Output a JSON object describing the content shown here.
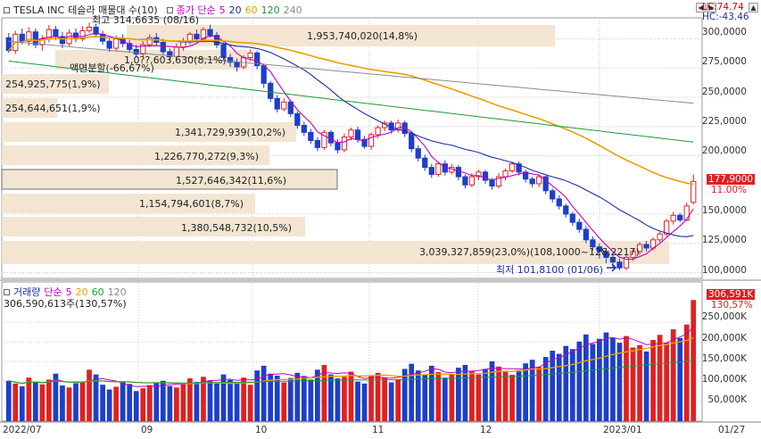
{
  "toolbar": {
    "stock_name": "TESLA INC",
    "indicator": "테슬라 매물대 수(10)",
    "ma_label": "종가 단순",
    "ma_periods": [
      "5",
      "20",
      "60",
      "120",
      "240"
    ],
    "ma_colors": [
      "#c000c0",
      "#1c2fa8",
      "#e8a100",
      "#1a9a3c",
      "#8a8a8a"
    ]
  },
  "lc_hc": {
    "lc": "LC:74.74",
    "hc": "HC:-43.46"
  },
  "price_axis": [
    "300,0000",
    "275,0000",
    "250,0000",
    "225,0000",
    "200,0000",
    "177,9000",
    "150,0000",
    "125,0000",
    "100,0000"
  ],
  "current_price": {
    "value": "177,9000",
    "pct": "11.00%"
  },
  "volume_panel": {
    "label": "거래량",
    "ma_label": "단순",
    "ma_periods": [
      "5",
      "20",
      "60",
      "120"
    ],
    "ma_colors": [
      "#c000c0",
      "#e8a100",
      "#1a9a3c",
      "#8a8a8a"
    ],
    "current_volume": "306,590,613주(130,57%)",
    "current_tag": "306,591K",
    "current_pct": "130,57%"
  },
  "volume_axis": [
    "250,000K",
    "200,000K",
    "150,000K",
    "100,000K",
    "50,000K"
  ],
  "date_axis": [
    "2022/07",
    "09",
    "10",
    "11",
    "12",
    "2023/01",
    "01/27"
  ],
  "annotations": {
    "high": "최고 314,6635 (08/16)",
    "low": "최저 101,8100 (01/06)",
    "split": "액면분할(-66,67%)"
  },
  "volume_profile": [
    {
      "label": "1,953,740,020(14,8%)"
    },
    {
      "label": "1,0??,603,630(8,1%)"
    },
    {
      "label": "254,925,775(1,9%)"
    },
    {
      "label": "254,644,651(1,9%)"
    },
    {
      "label": "1,341,729,939(10,2%)"
    },
    {
      "label": "1,226,770,272(9,3%)"
    },
    {
      "label": "1,527,646,342(11,6%)"
    },
    {
      "label": "1,154,794,601(8,7%)"
    },
    {
      "label": "1,380,548,732(10,5%)"
    },
    {
      "label": "3,039,327,859(23,0%)(108,1000~128,2217)"
    }
  ],
  "chart_data": {
    "type": "candlestick",
    "yrange": [
      95,
      318
    ],
    "candles": [
      [
        301,
        290,
        305,
        288
      ],
      [
        290,
        304,
        307,
        287
      ],
      [
        304,
        298,
        309,
        295
      ],
      [
        298,
        306,
        310,
        294
      ],
      [
        306,
        295,
        309,
        292
      ],
      [
        295,
        300,
        303,
        290
      ],
      [
        300,
        308,
        312,
        297
      ],
      [
        308,
        302,
        311,
        299
      ],
      [
        302,
        296,
        306,
        292
      ],
      [
        296,
        305,
        308,
        294
      ],
      [
        305,
        300,
        309,
        297
      ],
      [
        300,
        307,
        311,
        298
      ],
      [
        307,
        310,
        314,
        305
      ],
      [
        310,
        304,
        313,
        302
      ],
      [
        304,
        298,
        307,
        295
      ],
      [
        298,
        292,
        301,
        289
      ],
      [
        292,
        300,
        303,
        290
      ],
      [
        300,
        296,
        304,
        293
      ],
      [
        296,
        291,
        299,
        288
      ],
      [
        291,
        287,
        295,
        284
      ],
      [
        287,
        295,
        298,
        285
      ],
      [
        295,
        301,
        304,
        293
      ],
      [
        301,
        297,
        305,
        294
      ],
      [
        297,
        289,
        300,
        286
      ],
      [
        289,
        285,
        292,
        281
      ],
      [
        285,
        293,
        296,
        283
      ],
      [
        293,
        298,
        301,
        290
      ],
      [
        298,
        304,
        306,
        295
      ],
      [
        304,
        300,
        308,
        298
      ],
      [
        300,
        308,
        310,
        297
      ],
      [
        308,
        303,
        312,
        301
      ],
      [
        303,
        295,
        306,
        292
      ],
      [
        295,
        284,
        297,
        281
      ],
      [
        284,
        280,
        287,
        276
      ],
      [
        280,
        276,
        283,
        272
      ],
      [
        276,
        284,
        286,
        274
      ],
      [
        284,
        288,
        291,
        281
      ],
      [
        288,
        277,
        290,
        274
      ],
      [
        277,
        262,
        279,
        258
      ],
      [
        262,
        249,
        264,
        246
      ],
      [
        249,
        240,
        252,
        237
      ],
      [
        240,
        246,
        249,
        238
      ],
      [
        246,
        236,
        248,
        233
      ],
      [
        236,
        226,
        238,
        223
      ],
      [
        226,
        220,
        229,
        217
      ],
      [
        220,
        213,
        223,
        210
      ],
      [
        213,
        207,
        216,
        204
      ],
      [
        207,
        220,
        222,
        205
      ],
      [
        220,
        211,
        222,
        208
      ],
      [
        211,
        205,
        214,
        202
      ],
      [
        205,
        216,
        219,
        203
      ],
      [
        216,
        222,
        224,
        213
      ],
      [
        222,
        214,
        225,
        211
      ],
      [
        214,
        208,
        217,
        206
      ],
      [
        208,
        218,
        220,
        205
      ],
      [
        218,
        224,
        226,
        215
      ],
      [
        224,
        228,
        230,
        221
      ],
      [
        228,
        222,
        230,
        219
      ],
      [
        222,
        228,
        231,
        220
      ],
      [
        228,
        219,
        230,
        216
      ],
      [
        219,
        206,
        221,
        203
      ],
      [
        206,
        198,
        209,
        195
      ],
      [
        198,
        190,
        201,
        187
      ],
      [
        190,
        184,
        193,
        181
      ],
      [
        184,
        193,
        195,
        182
      ],
      [
        193,
        186,
        196,
        183
      ],
      [
        186,
        190,
        193,
        184
      ],
      [
        190,
        182,
        192,
        179
      ],
      [
        182,
        175,
        184,
        172
      ],
      [
        175,
        182,
        185,
        173
      ],
      [
        182,
        186,
        188,
        179
      ],
      [
        186,
        179,
        188,
        176
      ],
      [
        179,
        174,
        181,
        171
      ],
      [
        174,
        182,
        185,
        172
      ],
      [
        182,
        187,
        189,
        179
      ],
      [
        187,
        193,
        195,
        185
      ],
      [
        193,
        186,
        195,
        183
      ],
      [
        186,
        180,
        188,
        177
      ],
      [
        180,
        176,
        182,
        173
      ],
      [
        176,
        182,
        184,
        173
      ],
      [
        182,
        170,
        183,
        167
      ],
      [
        170,
        163,
        172,
        160
      ],
      [
        163,
        157,
        166,
        154
      ],
      [
        157,
        150,
        159,
        147
      ],
      [
        150,
        143,
        152,
        140
      ],
      [
        143,
        137,
        146,
        134
      ],
      [
        137,
        128,
        140,
        125
      ],
      [
        128,
        122,
        131,
        119
      ],
      [
        122,
        118,
        125,
        112
      ],
      [
        118,
        113,
        121,
        108
      ],
      [
        113,
        109,
        117,
        104
      ],
      [
        109,
        104,
        112,
        102
      ],
      [
        104,
        113,
        116,
        102
      ],
      [
        113,
        118,
        120,
        110
      ],
      [
        118,
        124,
        126,
        115
      ],
      [
        124,
        121,
        127,
        118
      ],
      [
        121,
        128,
        130,
        119
      ],
      [
        128,
        133,
        135,
        126
      ],
      [
        133,
        144,
        146,
        131
      ],
      [
        144,
        149,
        152,
        141
      ],
      [
        149,
        145,
        151,
        143
      ],
      [
        145,
        157,
        160,
        144
      ],
      [
        160,
        178,
        184,
        158
      ]
    ],
    "volumes": [
      102,
      95,
      88,
      110,
      98,
      93,
      105,
      120,
      90,
      85,
      96,
      100,
      130,
      118,
      92,
      80,
      87,
      99,
      94,
      76,
      83,
      91,
      97,
      102,
      89,
      85,
      93,
      108,
      99,
      112,
      101,
      95,
      118,
      104,
      97,
      110,
      92,
      128,
      140,
      120,
      115,
      98,
      109,
      122,
      114,
      105,
      130,
      142,
      118,
      108,
      112,
      125,
      100,
      95,
      116,
      122,
      111,
      98,
      106,
      132,
      145,
      128,
      118,
      140,
      124,
      110,
      119,
      135,
      142,
      126,
      118,
      132,
      151,
      138,
      125,
      117,
      129,
      146,
      155,
      137,
      162,
      178,
      170,
      190,
      182,
      201,
      219,
      195,
      208,
      224,
      210,
      198,
      215,
      186,
      192,
      176,
      205,
      218,
      198,
      232,
      210,
      244,
      306
    ],
    "vol_colors": [
      "red",
      "blue"
    ]
  }
}
